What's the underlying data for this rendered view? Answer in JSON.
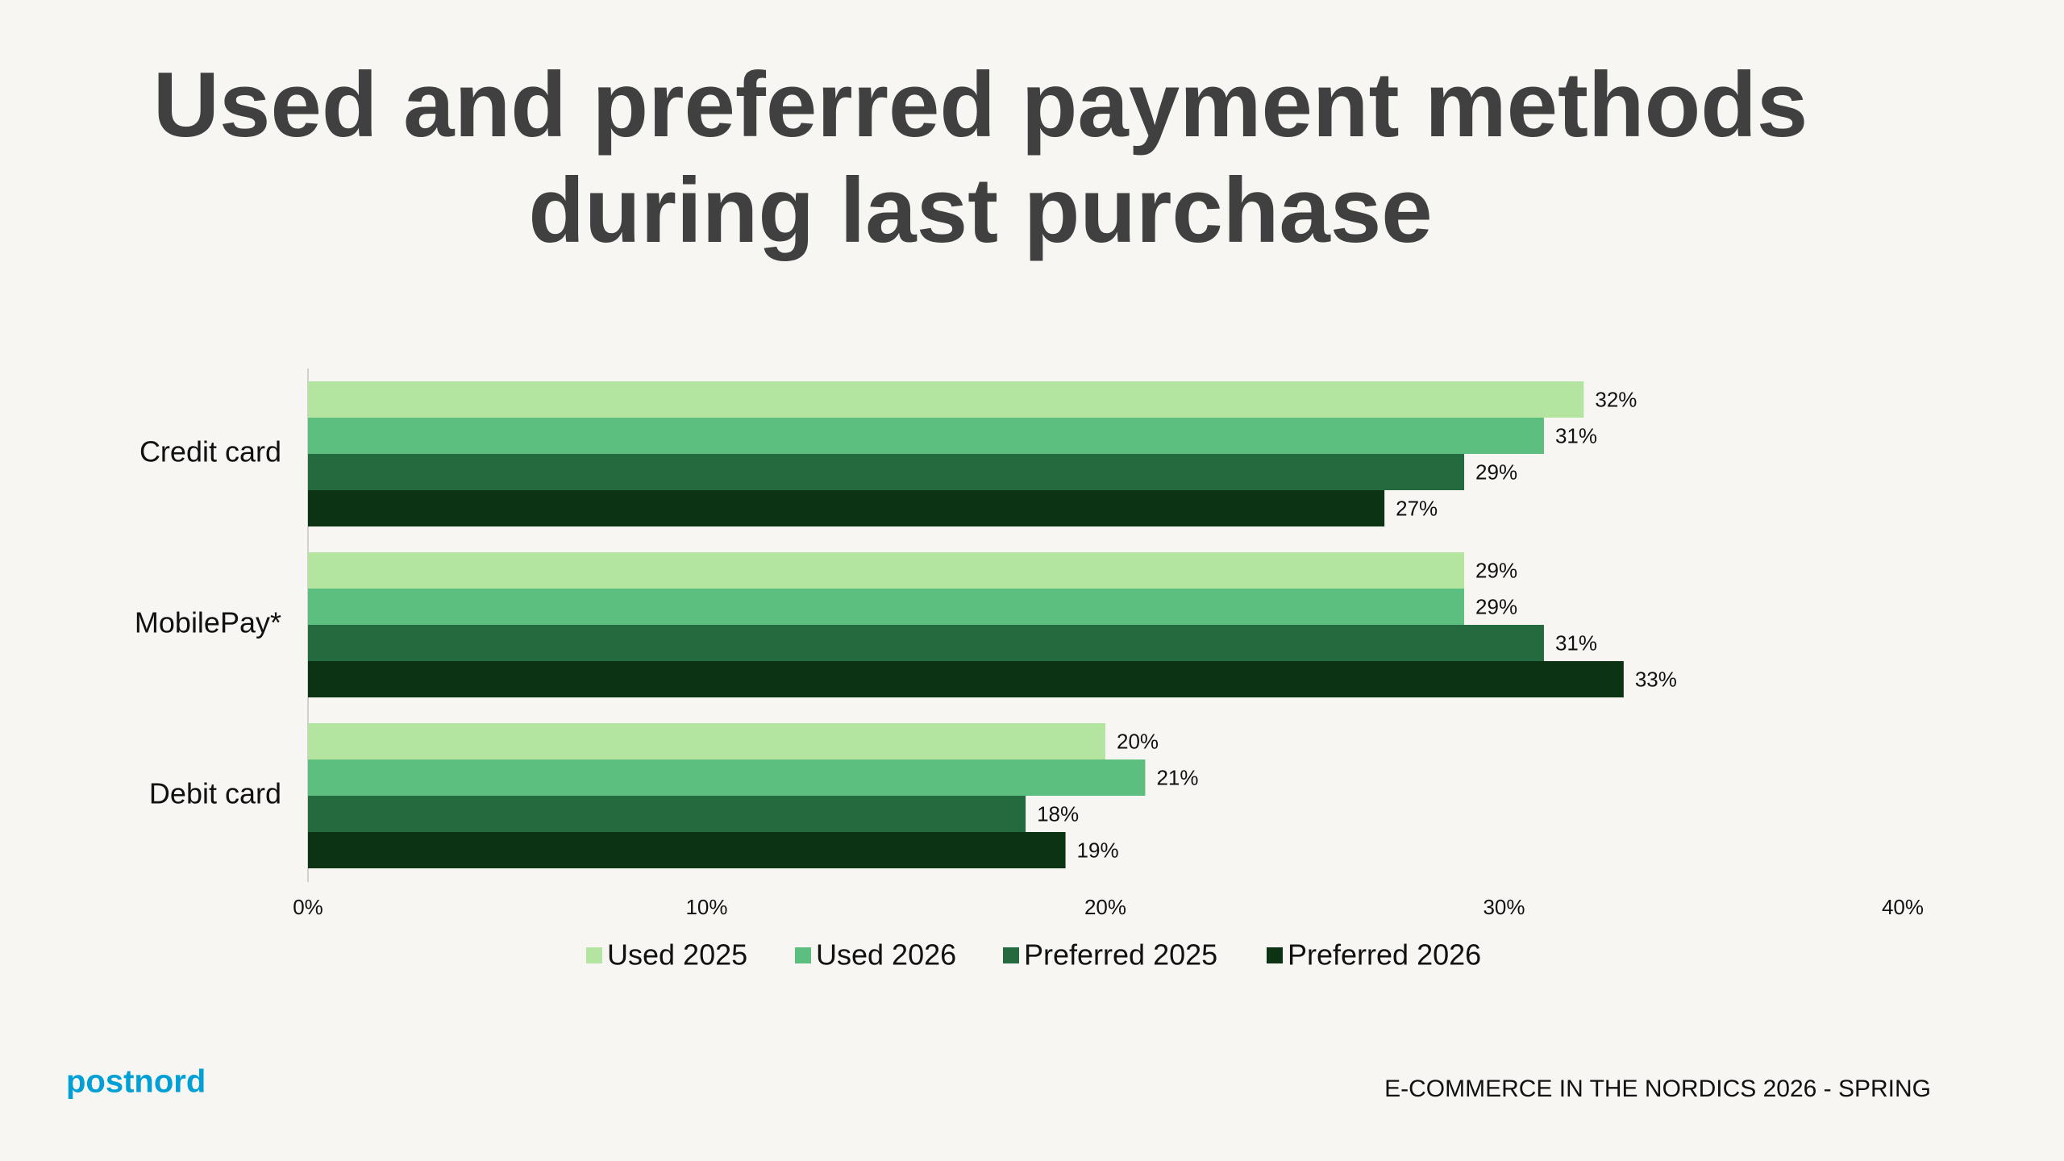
{
  "chart_data": {
    "type": "bar",
    "orientation": "horizontal",
    "title": "Used and preferred payment methods during last purchase",
    "title_lines": [
      "Used and preferred payment methods",
      "during last purchase"
    ],
    "categories": [
      "Credit card",
      "MobilePay*",
      "Debit card"
    ],
    "series": [
      {
        "name": "Used 2025",
        "color": "#b3e5a1",
        "values": [
          32,
          29,
          20
        ],
        "value_labels": [
          "32%",
          "29%",
          "20%"
        ]
      },
      {
        "name": "Used 2026",
        "color": "#5cbf7f",
        "values": [
          31,
          29,
          21
        ],
        "value_labels": [
          "31%",
          "29%",
          "21%"
        ]
      },
      {
        "name": "Preferred 2025",
        "color": "#236b3e",
        "values": [
          29,
          31,
          18
        ],
        "value_labels": [
          "29%",
          "31%",
          "18%"
        ]
      },
      {
        "name": "Preferred 2026",
        "color": "#0c3313",
        "values": [
          27,
          33,
          19
        ],
        "value_labels": [
          "27%",
          "33%",
          "19%"
        ]
      }
    ],
    "xlim": [
      0,
      40
    ],
    "xticks": [
      {
        "value": 0,
        "label": "0%"
      },
      {
        "value": 10,
        "label": "10%"
      },
      {
        "value": 20,
        "label": "20%"
      },
      {
        "value": 30,
        "label": "30%"
      },
      {
        "value": 40,
        "label": "40%"
      }
    ],
    "grid": false,
    "legend": "bottom"
  },
  "footer": {
    "logo": "postnord",
    "source": "E-COMMERCE IN THE NORDICS 2026 - SPRING"
  }
}
